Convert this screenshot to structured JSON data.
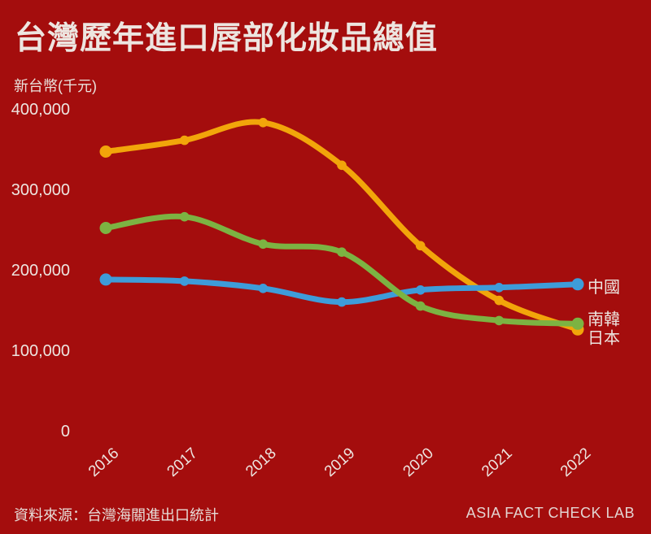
{
  "title": "台灣歷年進口唇部化妝品總值",
  "source": "資料來源：台灣海關進出口統計",
  "brand": "ASIA FACT CHECK LAB",
  "colors": {
    "background": "#A40D0D",
    "text": "#EDE5E0",
    "japan_line": "#F2A50A",
    "china_line": "#3E9CD9",
    "korea_line": "#7CB342"
  },
  "chart_data": {
    "type": "line",
    "title": "台灣歷年進口唇部化妝品總值",
    "ylabel": "新台幣(千元)",
    "xlabel": "",
    "categories": [
      "2016",
      "2017",
      "2018",
      "2019",
      "2020",
      "2021",
      "2022"
    ],
    "ylim": [
      0,
      400000
    ],
    "grid": false,
    "legend_position": "right-of-line-ends",
    "y_ticks": [
      {
        "label": "400,000",
        "value": 400000
      },
      {
        "label": "300,000",
        "value": 300000
      },
      {
        "label": "200,000",
        "value": 200000
      },
      {
        "label": "100,000",
        "value": 100000
      },
      {
        "label": "0",
        "value": 0
      }
    ],
    "series": [
      {
        "id": "japan",
        "name": "日本",
        "color": "#F2A50A",
        "values": [
          347000,
          361000,
          383000,
          330000,
          230000,
          162000,
          126000
        ],
        "label_dy": 10
      },
      {
        "id": "china",
        "name": "中國",
        "color": "#3E9CD9",
        "values": [
          188000,
          186000,
          177000,
          160000,
          175000,
          178000,
          182000
        ],
        "label_dy": 3
      },
      {
        "id": "korea",
        "name": "南韓",
        "color": "#7CB342",
        "values": [
          252000,
          266000,
          232000,
          222000,
          155000,
          137000,
          133000
        ],
        "label_dy": -6
      }
    ]
  }
}
